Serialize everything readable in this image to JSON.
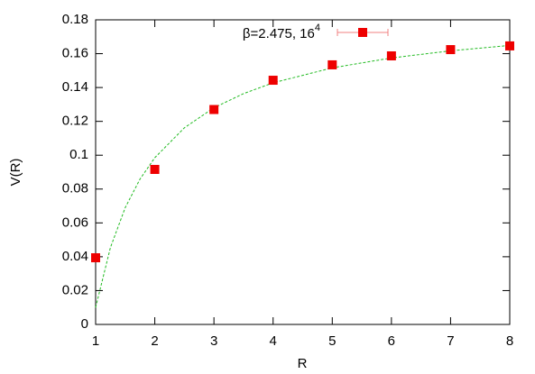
{
  "chart_data": {
    "type": "scatter",
    "xlabel": "R",
    "ylabel": "V(R)",
    "xlim": [
      1,
      8
    ],
    "ylim": [
      0,
      0.18
    ],
    "xticks": [
      1,
      2,
      3,
      4,
      5,
      6,
      7,
      8
    ],
    "yticks": [
      0,
      0.02,
      0.04,
      0.06,
      0.08,
      0.1,
      0.12,
      0.14,
      0.16,
      0.18
    ],
    "series": [
      {
        "name": "β=2.475, 16",
        "name_superscript": "4",
        "color": "#ee0000",
        "x": [
          1,
          2,
          3,
          4,
          5,
          6,
          7,
          8
        ],
        "values": [
          0.0394,
          0.0916,
          0.127,
          0.1443,
          0.1534,
          0.1587,
          0.1624,
          0.1646
        ]
      }
    ],
    "fit": {
      "color": "#22bb22",
      "x": [
        1,
        1.25,
        1.5,
        1.75,
        2,
        2.5,
        3,
        3.5,
        4,
        5,
        6,
        7,
        8
      ],
      "values": [
        0.01,
        0.0454,
        0.069,
        0.0859,
        0.0985,
        0.1162,
        0.128,
        0.1364,
        0.1428,
        0.1516,
        0.1575,
        0.1617,
        0.1649
      ]
    }
  }
}
